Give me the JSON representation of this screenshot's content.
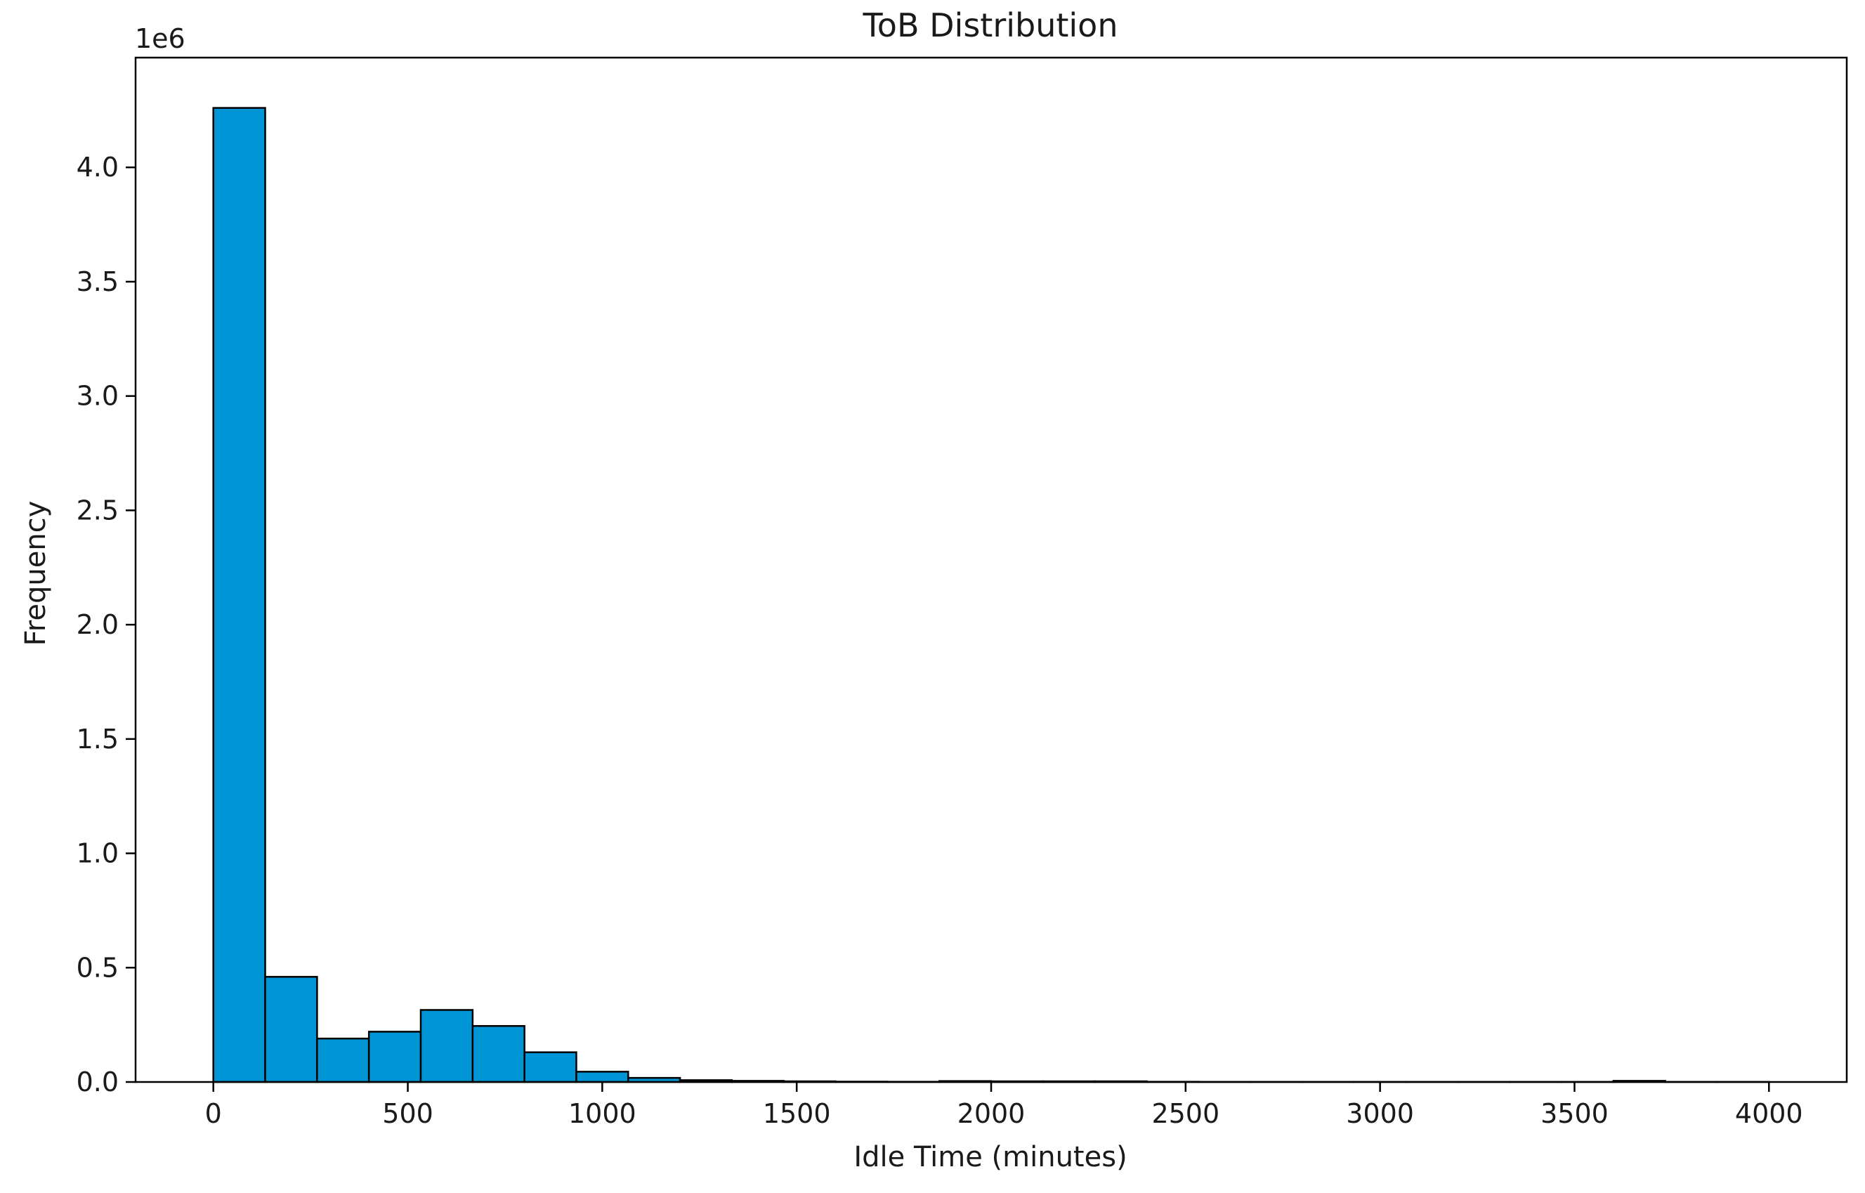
{
  "chart_data": {
    "type": "bar",
    "title": "ToB Distribution",
    "xlabel": "Idle Time (minutes)",
    "ylabel": "Frequency",
    "y_offset_label": "1e6",
    "y_scale": 1000000,
    "xlim": [
      -200,
      4200
    ],
    "ylim": [
      0,
      4480000
    ],
    "x_ticks": [
      0,
      500,
      1000,
      1500,
      2000,
      2500,
      3000,
      3500,
      4000
    ],
    "x_tick_labels": [
      "0",
      "500",
      "1000",
      "1500",
      "2000",
      "2500",
      "3000",
      "3500",
      "4000"
    ],
    "y_ticks": [
      0,
      500000,
      1000000,
      1500000,
      2000000,
      2500000,
      3000000,
      3500000,
      4000000
    ],
    "y_tick_labels": [
      "0.0",
      "0.5",
      "1.0",
      "1.5",
      "2.0",
      "2.5",
      "3.0",
      "3.5",
      "4.0"
    ],
    "grid": false,
    "bin_edges": [
      0,
      133.3,
      266.7,
      400,
      533.3,
      666.7,
      800,
      933.3,
      1066.7,
      1200,
      1333.3,
      1466.7,
      1600,
      1733.3,
      1866.7,
      2000,
      2133.3,
      2266.7,
      2400,
      2533.3,
      2666.7,
      2800,
      2933.3,
      3066.7,
      3200,
      3333.3,
      3466.7,
      3600,
      3733.3,
      3866.7,
      4000
    ],
    "series": [
      {
        "values": [
          4260000,
          460000,
          190000,
          220000,
          315000,
          245000,
          130000,
          45000,
          18000,
          8000,
          5000,
          3000,
          1500,
          1000,
          4000,
          3000,
          3000,
          3000,
          1000,
          500,
          500,
          500,
          500,
          500,
          500,
          500,
          500,
          5000,
          500,
          500
        ]
      }
    ],
    "bar_color": "#0096d6",
    "edge_color": "#000000"
  }
}
